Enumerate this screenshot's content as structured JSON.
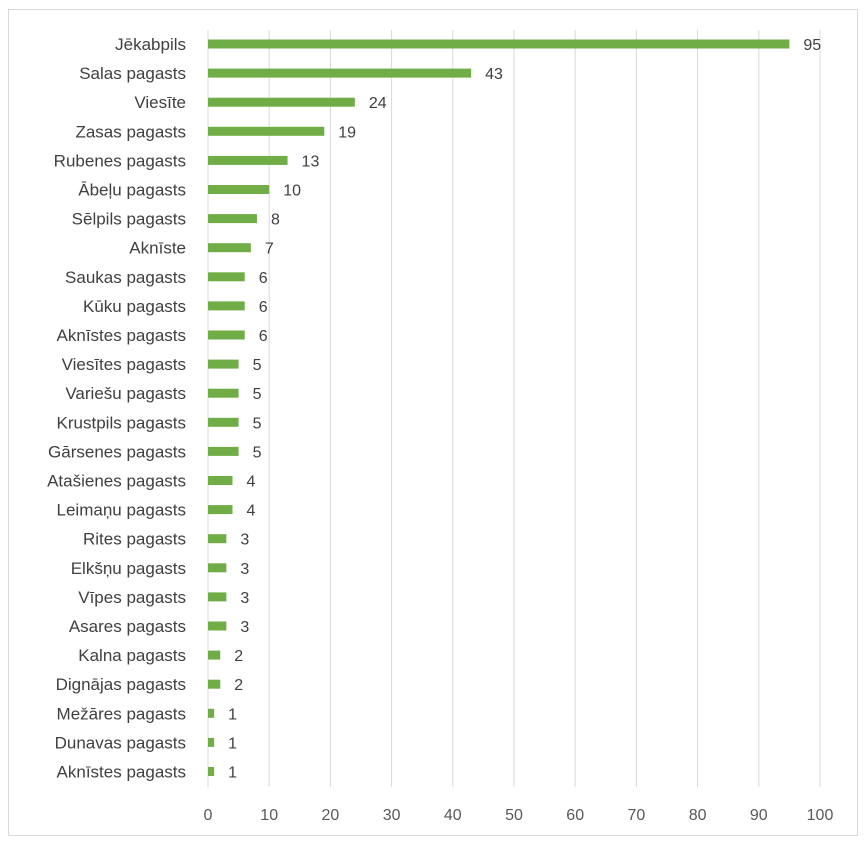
{
  "chart_data": {
    "type": "bar",
    "orientation": "horizontal",
    "title": "",
    "xlabel": "",
    "ylabel": "",
    "categories": [
      "Jēkabpils",
      "Salas pagasts",
      "Viesīte",
      "Zasas pagasts",
      "Rubenes pagasts",
      "Ābeļu pagasts",
      "Sēlpils pagasts",
      "Aknīste",
      "Saukas pagasts",
      "Kūku pagasts",
      "Aknīstes pagasts",
      "Viesītes pagasts",
      "Variešu pagasts",
      "Krustpils pagasts",
      "Gārsenes pagasts",
      "Atašienes pagasts",
      "Leimaņu pagasts",
      "Rites pagasts",
      "Elkšņu pagasts",
      "Vīpes pagasts",
      "Asares pagasts",
      "Kalna pagasts",
      "Dignājas pagasts",
      "Mežāres pagasts",
      "Dunavas pagasts",
      "Aknīstes pagasts"
    ],
    "values": [
      95,
      43,
      24,
      19,
      13,
      10,
      8,
      7,
      6,
      6,
      6,
      5,
      5,
      5,
      5,
      4,
      4,
      3,
      3,
      3,
      3,
      2,
      2,
      1,
      1,
      1
    ],
    "data_labels": [
      "95",
      "43",
      "24",
      "19",
      "13",
      "10",
      "8",
      "7",
      "6",
      "6",
      "6",
      "5",
      "5",
      "5",
      "5",
      "4",
      "4",
      "3",
      "3",
      "3",
      "3",
      "2",
      "2",
      "1",
      "1",
      "1"
    ],
    "xlim": [
      0,
      100
    ],
    "x_ticks": [
      0,
      10,
      20,
      30,
      40,
      50,
      60,
      70,
      80,
      90,
      100
    ],
    "x_tick_labels": [
      "0",
      "10",
      "20",
      "30",
      "40",
      "50",
      "60",
      "70",
      "80",
      "90",
      "100"
    ],
    "grid": "vertical",
    "legend": "none",
    "bar_color": "#70ad47",
    "grid_color": "#d9d9d9"
  }
}
